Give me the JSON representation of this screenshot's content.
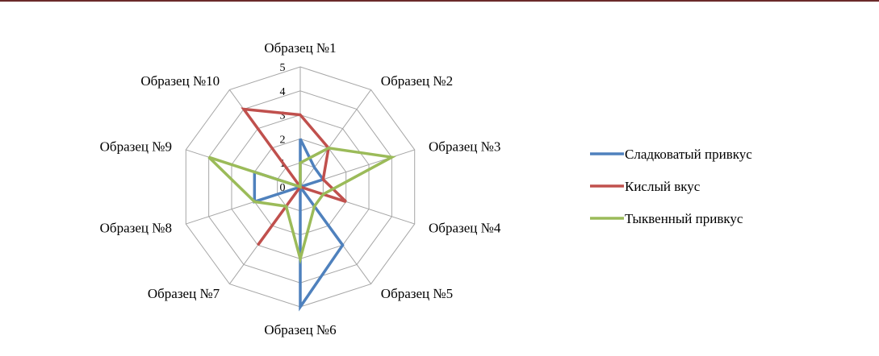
{
  "chart_data": {
    "type": "radar",
    "categories": [
      "Образец №1",
      "Образец №2",
      "Образец №3",
      "Образец №4",
      "Образец №5",
      "Образец №6",
      "Образец №7",
      "Образец №8",
      "Образец №9",
      "Образец №10"
    ],
    "rlim": [
      0,
      5
    ],
    "ticks": [
      "0",
      "1",
      "2",
      "3",
      "4",
      "5"
    ],
    "grid": true,
    "legend_position": "right",
    "series": [
      {
        "name": "Сладковатый привкус",
        "color": "#4f81bd",
        "values": [
          2,
          1,
          1,
          0,
          3,
          5,
          0,
          2,
          2,
          0
        ]
      },
      {
        "name": "Кислый вкус",
        "color": "#c0504d",
        "values": [
          3,
          2,
          1,
          2,
          0,
          0,
          3,
          0,
          0,
          4
        ]
      },
      {
        "name": "Тыквенный привкус",
        "color": "#9bbb59",
        "values": [
          1,
          2,
          4,
          1,
          1,
          3,
          1,
          2,
          4,
          0
        ]
      }
    ]
  }
}
